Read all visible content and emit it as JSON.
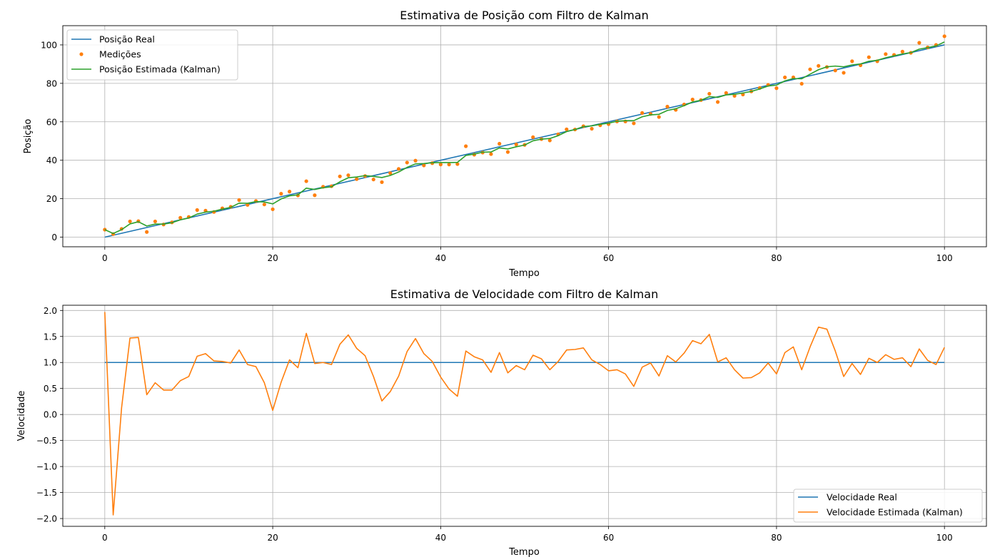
{
  "chart_data": [
    {
      "type": "line",
      "title": "Estimativa de Posição com Filtro de Kalman",
      "xlabel": "Tempo",
      "ylabel": "Posição",
      "xlim": [
        -5,
        105
      ],
      "ylim": [
        -5,
        110
      ],
      "xticks": [
        0,
        20,
        40,
        60,
        80,
        100
      ],
      "yticks": [
        0,
        20,
        40,
        60,
        80,
        100
      ],
      "grid": true,
      "legend_position": "top-left",
      "colors": {
        "real": "#1f77b4",
        "measured": "#ff7f0e",
        "estimated": "#2ca02c"
      },
      "series": [
        {
          "name": "Posição Real",
          "style": "line",
          "x": [
            0,
            100
          ],
          "values": [
            0,
            100
          ]
        },
        {
          "name": "Medições",
          "style": "points",
          "values": [
            3.9,
            1.6,
            4.3,
            8.2,
            8.3,
            2.7,
            8.2,
            6.6,
            7.7,
            10.1,
            10.5,
            14.1,
            13.8,
            13.1,
            15.0,
            15.8,
            19.3,
            16.8,
            18.8,
            17.0,
            14.5,
            22.6,
            23.7,
            21.7,
            29.1,
            21.8,
            26.2,
            26.5,
            31.6,
            32.2,
            30.2,
            31.8,
            30.0,
            28.6,
            33.3,
            35.5,
            38.8,
            39.8,
            37.3,
            38.5,
            37.8,
            37.8,
            38.0,
            47.3,
            42.9,
            44.0,
            43.2,
            48.6,
            44.3,
            48.2,
            48.0,
            52.0,
            51.0,
            50.3,
            53.5,
            56.1,
            56.0,
            57.7,
            56.4,
            58.2,
            58.8,
            60.2,
            60.2,
            59.2,
            64.6,
            64.1,
            62.5,
            67.9,
            66.2,
            69.0,
            71.6,
            71.3,
            74.6,
            70.3,
            75.0,
            73.5,
            74.2,
            75.8,
            77.6,
            79.2,
            77.5,
            83.1,
            83.1,
            79.8,
            87.3,
            89.1,
            88.5,
            86.7,
            85.5,
            91.5,
            89.4,
            93.6,
            91.5,
            95.2,
            94.8,
            96.5,
            95.9,
            101.1,
            98.7,
            100.0,
            104.5
          ]
        },
        {
          "name": "Posição Estimada (Kalman)",
          "style": "line",
          "values": [
            3.9,
            1.9,
            3.9,
            6.9,
            8.0,
            5.8,
            6.8,
            6.8,
            7.5,
            9.0,
            10.0,
            12.0,
            13.0,
            13.5,
            14.6,
            15.5,
            17.7,
            17.6,
            18.5,
            18.3,
            17.3,
            19.9,
            21.5,
            22.0,
            25.5,
            24.8,
            25.7,
            26.2,
            28.8,
            30.9,
            31.3,
            32.0,
            31.6,
            31.0,
            32.1,
            33.9,
            36.3,
            38.1,
            38.3,
            38.7,
            38.8,
            38.8,
            38.9,
            42.5,
            43.2,
            44.2,
            44.3,
            46.4,
            45.9,
            47.0,
            47.9,
            50.1,
            51.0,
            51.3,
            52.8,
            54.9,
            56.0,
            57.5,
            57.9,
            58.7,
            59.3,
            60.3,
            60.6,
            60.6,
            62.6,
            63.6,
            63.9,
            65.9,
            66.8,
            68.4,
            70.3,
            71.2,
            73.1,
            72.7,
            74.0,
            74.3,
            75.0,
            75.8,
            77.1,
            78.6,
            79.1,
            81.3,
            82.5,
            82.4,
            84.8,
            87.1,
            88.6,
            89.0,
            88.6,
            89.6,
            90.1,
            91.5,
            92.0,
            93.3,
            94.3,
            95.3,
            96.0,
            97.8,
            98.6,
            99.5,
            101.5
          ]
        }
      ]
    },
    {
      "type": "line",
      "title": "Estimativa de Velocidade com Filtro de Kalman",
      "xlabel": "Tempo",
      "ylabel": "Velocidade",
      "xlim": [
        -5,
        105
      ],
      "ylim": [
        -2.15,
        2.1
      ],
      "xticks": [
        0,
        20,
        40,
        60,
        80,
        100
      ],
      "yticks": [
        -2.0,
        -1.5,
        -1.0,
        -0.5,
        0.0,
        0.5,
        1.0,
        1.5,
        2.0
      ],
      "grid": true,
      "legend_position": "bottom-right",
      "colors": {
        "real": "#1f77b4",
        "estimated": "#ff7f0e"
      },
      "series": [
        {
          "name": "Velocidade Real",
          "style": "line",
          "x": [
            0,
            100
          ],
          "values": [
            1.0,
            1.0
          ]
        },
        {
          "name": "Velocidade Estimada (Kalman)",
          "style": "line",
          "values": [
            1.97,
            -1.93,
            0.13,
            1.47,
            1.48,
            0.38,
            0.61,
            0.47,
            0.47,
            0.65,
            0.73,
            1.12,
            1.17,
            1.03,
            1.02,
            0.99,
            1.24,
            0.96,
            0.92,
            0.61,
            0.08,
            0.62,
            1.05,
            0.9,
            1.56,
            0.98,
            1.0,
            0.96,
            1.35,
            1.53,
            1.27,
            1.13,
            0.73,
            0.26,
            0.44,
            0.74,
            1.21,
            1.46,
            1.17,
            1.02,
            0.72,
            0.49,
            0.35,
            1.22,
            1.11,
            1.05,
            0.81,
            1.19,
            0.8,
            0.94,
            0.86,
            1.14,
            1.07,
            0.86,
            1.02,
            1.24,
            1.25,
            1.28,
            1.05,
            0.96,
            0.84,
            0.86,
            0.78,
            0.54,
            0.91,
            0.99,
            0.74,
            1.13,
            1.01,
            1.18,
            1.42,
            1.36,
            1.54,
            1.01,
            1.09,
            0.86,
            0.7,
            0.71,
            0.8,
            0.99,
            0.78,
            1.19,
            1.3,
            0.86,
            1.3,
            1.68,
            1.64,
            1.22,
            0.73,
            0.98,
            0.77,
            1.08,
            1.0,
            1.15,
            1.06,
            1.09,
            0.92,
            1.26,
            1.04,
            0.96,
            1.29
          ]
        }
      ]
    }
  ]
}
